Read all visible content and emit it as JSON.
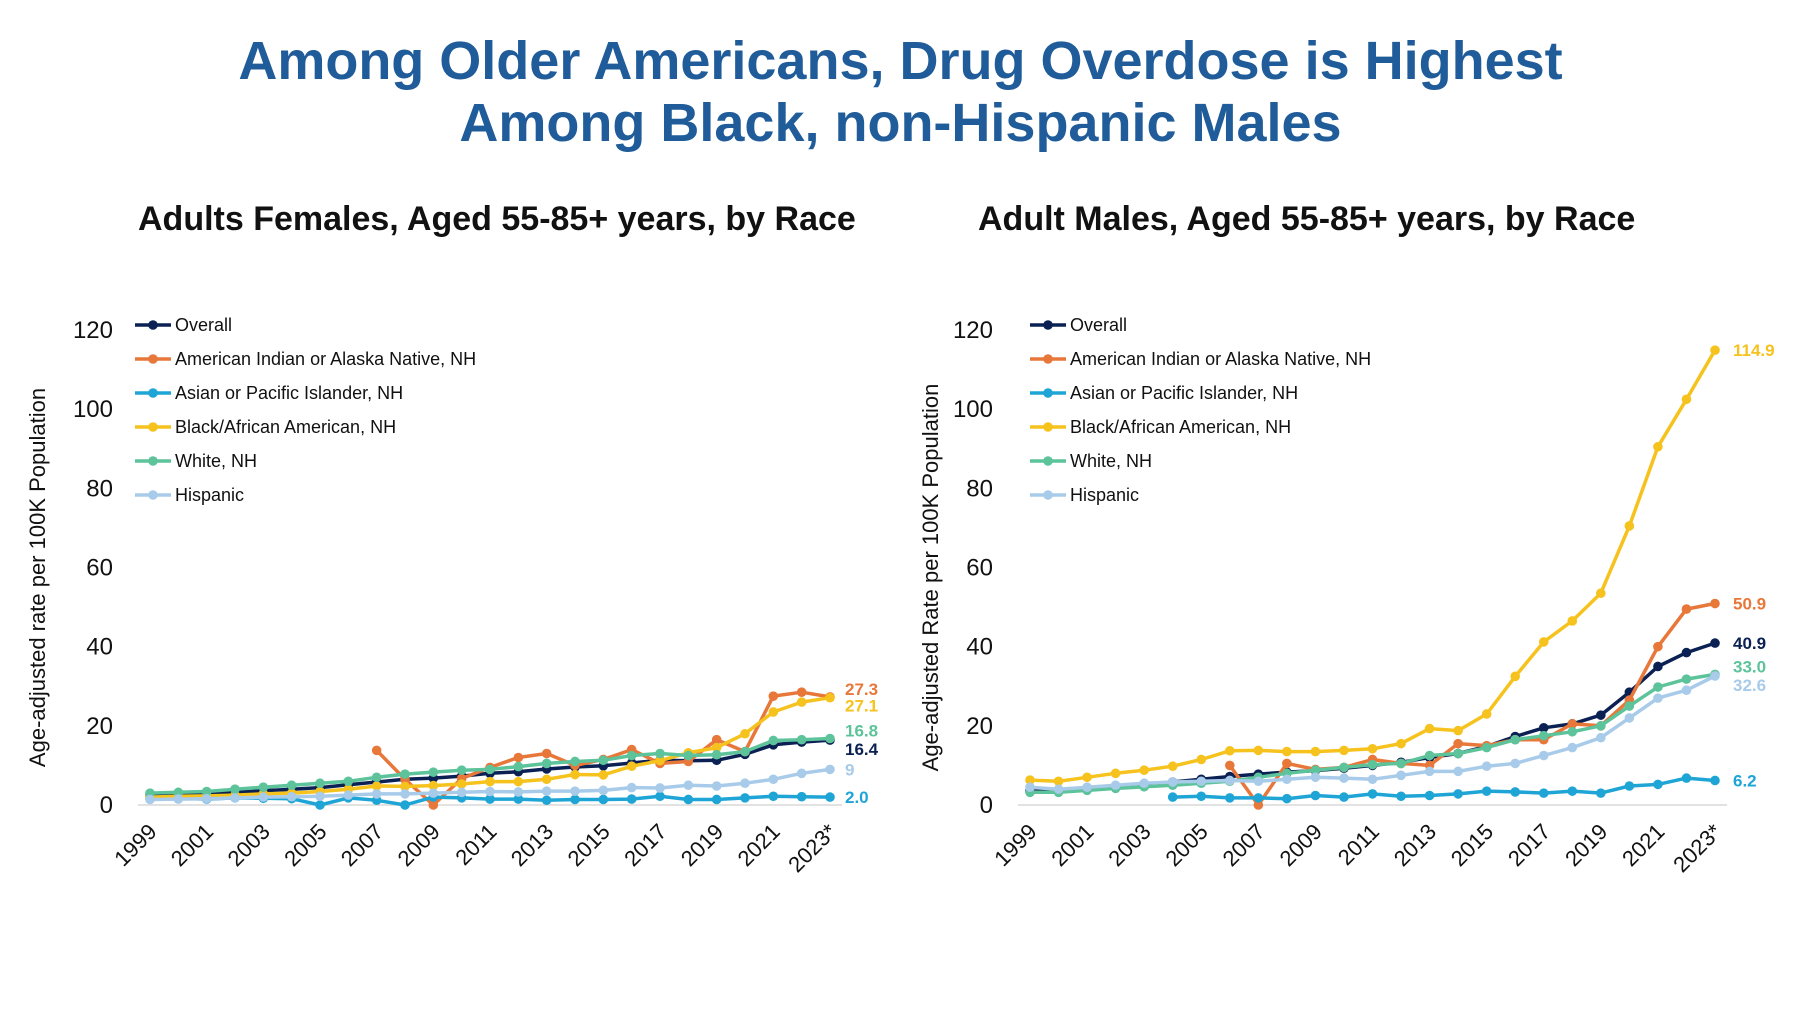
{
  "page": {
    "title_line1": "Among Older Americans, Drug Overdose is Highest",
    "title_line2": "Among Black, non-Hispanic Males"
  },
  "colors": {
    "title": "#1f5c99",
    "Overall": "#0b2154",
    "American Indian or Alaska Native, NH": "#e8773a",
    "Asian or Pacific Islander, NH": "#1ea5d6",
    "Black/African American, NH": "#f6c21e",
    "White, NH": "#5cc39a",
    "Hispanic": "#a8cbea"
  },
  "chart_data": [
    {
      "type": "line",
      "title": "Adults Females, Aged 55-85+ years, by Race",
      "ylabel": "Age-adjusted rate per 100K Population",
      "xlabel": "",
      "ylim": [
        0,
        120
      ],
      "yticks": [
        "0",
        "20",
        "40",
        "60",
        "80",
        "100",
        "120"
      ],
      "x": [
        "1999",
        "2000",
        "2001",
        "2002",
        "2003",
        "2004",
        "2005",
        "2006",
        "2007",
        "2008",
        "2009",
        "2010",
        "2011",
        "2012",
        "2013",
        "2014",
        "2015",
        "2016",
        "2017",
        "2018",
        "2019",
        "2020",
        "2021",
        "2022",
        "2023*"
      ],
      "xtick_labels": [
        "1999",
        "2001",
        "2003",
        "2005",
        "2007",
        "2009",
        "2011",
        "2013",
        "2015",
        "2017",
        "2019",
        "2021",
        "2023*"
      ],
      "legend_position": "top-left",
      "series": [
        {
          "name": "Overall",
          "end_label": "16.4",
          "values": [
            2.5,
            2.7,
            2.9,
            3.2,
            3.6,
            4.0,
            4.4,
            5.1,
            5.8,
            6.5,
            6.8,
            7.3,
            8.0,
            8.4,
            9.1,
            9.6,
            9.9,
            10.6,
            11.3,
            11.2,
            11.3,
            12.8,
            15.2,
            15.9,
            16.4
          ]
        },
        {
          "name": "American Indian or Alaska Native, NH",
          "end_label": "27.3",
          "values": [
            null,
            null,
            null,
            null,
            null,
            null,
            null,
            null,
            13.8,
            6.5,
            0.0,
            6.7,
            9.5,
            12.0,
            13.0,
            10.0,
            11.5,
            14.0,
            10.5,
            11.0,
            16.5,
            13.5,
            27.5,
            28.5,
            27.3
          ]
        },
        {
          "name": "Asian or Pacific Islander, NH",
          "end_label": "2.0",
          "values": [
            1.6,
            1.7,
            1.5,
            1.8,
            1.7,
            1.6,
            0.0,
            1.8,
            1.2,
            0.0,
            2.0,
            1.8,
            1.5,
            1.5,
            1.2,
            1.4,
            1.4,
            1.5,
            2.2,
            1.4,
            1.4,
            1.8,
            2.2,
            2.1,
            2.0
          ]
        },
        {
          "name": "Black/African American, NH",
          "end_label": "27.1",
          "values": [
            2.0,
            2.2,
            2.3,
            2.5,
            2.8,
            3.0,
            3.4,
            4.0,
            4.8,
            4.7,
            4.9,
            5.3,
            5.9,
            5.9,
            6.5,
            7.7,
            7.6,
            9.8,
            11.2,
            13.2,
            14.5,
            18.0,
            23.5,
            26.0,
            27.1
          ]
        },
        {
          "name": "White, NH",
          "end_label": "16.8",
          "values": [
            3.0,
            3.2,
            3.4,
            4.0,
            4.5,
            5.0,
            5.5,
            6.0,
            7.0,
            7.8,
            8.3,
            8.8,
            9.0,
            9.7,
            10.5,
            11.0,
            11.3,
            12.5,
            13.0,
            12.5,
            12.7,
            13.5,
            16.3,
            16.5,
            16.8
          ]
        },
        {
          "name": "Hispanic",
          "end_label": "9",
          "values": [
            1.4,
            1.5,
            1.6,
            1.8,
            2.0,
            2.1,
            2.2,
            2.5,
            2.8,
            2.8,
            3.0,
            3.2,
            3.4,
            3.3,
            3.5,
            3.5,
            3.7,
            4.4,
            4.3,
            5.0,
            4.8,
            5.5,
            6.5,
            8.0,
            9.0
          ]
        }
      ]
    },
    {
      "type": "line",
      "title": "Adult Males, Aged 55-85+ years, by Race",
      "ylabel": "Age-adjusted Rate per 100K Population",
      "xlabel": "",
      "ylim": [
        0,
        120
      ],
      "yticks": [
        "0",
        "20",
        "40",
        "60",
        "80",
        "100",
        "120"
      ],
      "x": [
        "1999",
        "2000",
        "2001",
        "2002",
        "2003",
        "2004",
        "2005",
        "2006",
        "2007",
        "2008",
        "2009",
        "2010",
        "2011",
        "2012",
        "2013",
        "2014",
        "2015",
        "2016",
        "2017",
        "2018",
        "2019",
        "2020",
        "2021",
        "2022",
        "2023*"
      ],
      "xtick_labels": [
        "1999",
        "2001",
        "2003",
        "2005",
        "2007",
        "2009",
        "2011",
        "2013",
        "2015",
        "2017",
        "2019",
        "2021",
        "2023*"
      ],
      "legend_position": "top-left",
      "series": [
        {
          "name": "Overall",
          "end_label": "40.9",
          "values": [
            3.5,
            3.7,
            4.0,
            4.7,
            5.2,
            5.8,
            6.5,
            7.2,
            7.8,
            8.3,
            8.7,
            9.3,
            10.0,
            10.8,
            12.0,
            13.0,
            14.8,
            17.3,
            19.5,
            20.5,
            22.7,
            28.5,
            35.0,
            38.5,
            40.9
          ]
        },
        {
          "name": "American Indian or Alaska Native, NH",
          "end_label": "50.9",
          "values": [
            null,
            null,
            null,
            null,
            null,
            null,
            null,
            10.0,
            0.0,
            10.5,
            9.0,
            9.5,
            11.5,
            10.5,
            10.0,
            15.5,
            15.0,
            16.5,
            16.5,
            20.5,
            20.0,
            26.5,
            40.0,
            49.5,
            50.9
          ]
        },
        {
          "name": "Asian or Pacific Islander, NH",
          "end_label": "6.2",
          "values": [
            null,
            null,
            null,
            null,
            null,
            2.0,
            2.2,
            1.8,
            1.8,
            1.6,
            2.4,
            2.0,
            2.8,
            2.2,
            2.4,
            2.8,
            3.5,
            3.3,
            3.0,
            3.5,
            3.0,
            4.8,
            5.2,
            6.8,
            6.2
          ]
        },
        {
          "name": "Black/African American, NH",
          "end_label": "114.9",
          "values": [
            6.3,
            6.0,
            7.0,
            8.0,
            8.8,
            9.8,
            11.5,
            13.7,
            13.8,
            13.5,
            13.5,
            13.8,
            14.2,
            15.5,
            19.3,
            18.8,
            23.0,
            32.5,
            41.2,
            46.5,
            53.5,
            70.5,
            90.5,
            102.5,
            114.9
          ]
        },
        {
          "name": "White, NH",
          "end_label": "33.0",
          "values": [
            3.2,
            3.2,
            3.7,
            4.2,
            4.6,
            5.0,
            5.5,
            6.0,
            7.0,
            8.0,
            8.8,
            9.5,
            10.2,
            10.5,
            12.5,
            13.0,
            14.5,
            16.5,
            17.5,
            18.5,
            20.0,
            25.0,
            29.8,
            31.8,
            33.0
          ]
        },
        {
          "name": "Hispanic",
          "end_label": "32.6",
          "values": [
            4.5,
            4.0,
            4.5,
            5.0,
            5.5,
            5.8,
            6.0,
            6.2,
            6.0,
            6.5,
            7.0,
            6.8,
            6.5,
            7.5,
            8.5,
            8.5,
            9.8,
            10.5,
            12.5,
            14.5,
            17.0,
            22.0,
            27.0,
            29.0,
            32.6
          ]
        }
      ]
    }
  ]
}
